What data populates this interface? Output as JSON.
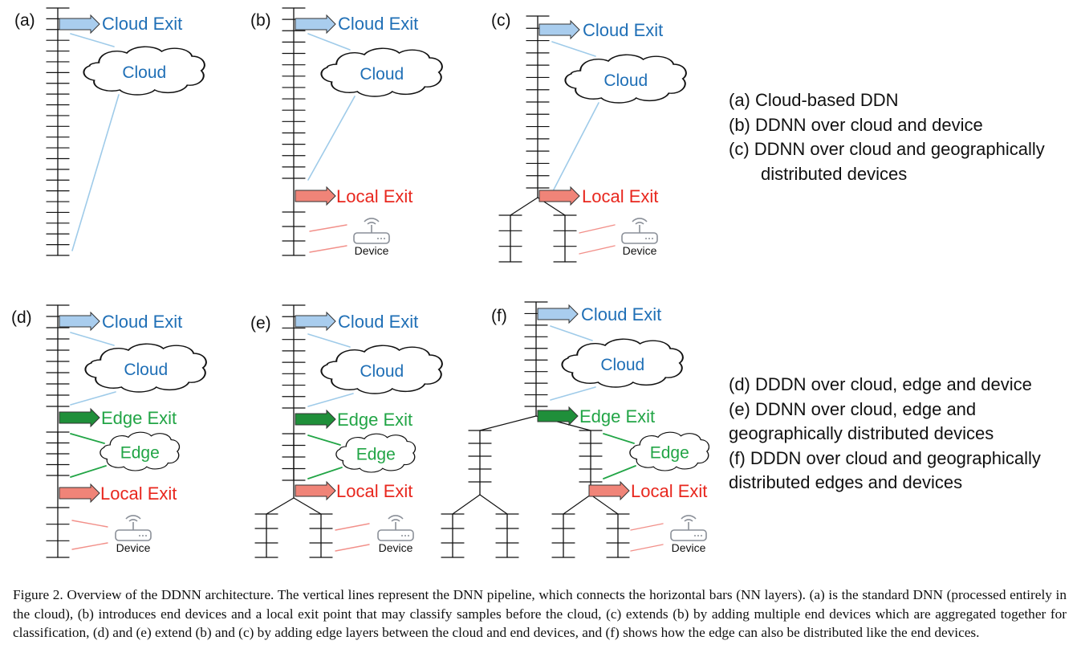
{
  "panels": [
    {
      "id": "a",
      "label": "(a)",
      "cloud_exit": "Cloud Exit",
      "cloud": "Cloud"
    },
    {
      "id": "b",
      "label": "(b)",
      "cloud_exit": "Cloud Exit",
      "cloud": "Cloud",
      "local_exit": "Local Exit",
      "device": "Device"
    },
    {
      "id": "c",
      "label": "(c)",
      "cloud_exit": "Cloud Exit",
      "cloud": "Cloud",
      "local_exit": "Local Exit",
      "device": "Device"
    },
    {
      "id": "d",
      "label": "(d)",
      "cloud_exit": "Cloud Exit",
      "cloud": "Cloud",
      "edge_exit": "Edge Exit",
      "edge": "Edge",
      "local_exit": "Local Exit",
      "device": "Device"
    },
    {
      "id": "e",
      "label": "(e)",
      "cloud_exit": "Cloud Exit",
      "cloud": "Cloud",
      "edge_exit": "Edge Exit",
      "edge": "Edge",
      "local_exit": "Local Exit",
      "device": "Device"
    },
    {
      "id": "f",
      "label": "(f)",
      "cloud_exit": "Cloud Exit",
      "cloud": "Cloud",
      "edge_exit": "Edge Exit",
      "edge": "Edge",
      "local_exit": "Local Exit",
      "device": "Device"
    }
  ],
  "legend_top": {
    "a": "(a)  Cloud-based DDN",
    "b": "(b)  DDNN over cloud and device",
    "c1": "(c)  DDNN over cloud and geographically",
    "c2": "distributed devices"
  },
  "legend_bottom": {
    "d": "(d) DDDN over cloud, edge and device",
    "e1": "(e) DDNN over cloud, edge and",
    "e2": "geographically distributed devices",
    "f1": "(f) DDDN over cloud and geographically",
    "f2": "distributed edges and devices"
  },
  "caption": "Figure 2.   Overview of the DDNN architecture. The vertical lines represent the DNN pipeline, which connects the horizontal bars (NN layers). (a) is the standard DNN (processed entirely in the cloud), (b) introduces end devices and a local exit point that may classify samples before the cloud, (c) extends (b) by adding multiple end devices which are aggregated together for classification, (d) and (e) extend (b) and (c) by adding edge layers between the cloud and end devices, and (f) shows how the edge can also be distributed like the end devices.",
  "colors": {
    "cloud_exit_fill": "#a9cdee",
    "cloud_text": "#1f6fb6",
    "edge_exit_fill": "#1f8f3a",
    "edge_text": "#22a546",
    "local_exit_fill": "#f08478",
    "local_text": "#e8271e",
    "cloud_line": "#9fcbe9",
    "edge_line": "#22a546",
    "device_line": "#f2908a",
    "device_icon": "#8a8f98",
    "ink": "#111111"
  },
  "icons": {
    "cloud": "cloud-shape",
    "edge": "cloud-shape",
    "device": "wifi-router-icon",
    "exit": "right-arrow-icon"
  }
}
